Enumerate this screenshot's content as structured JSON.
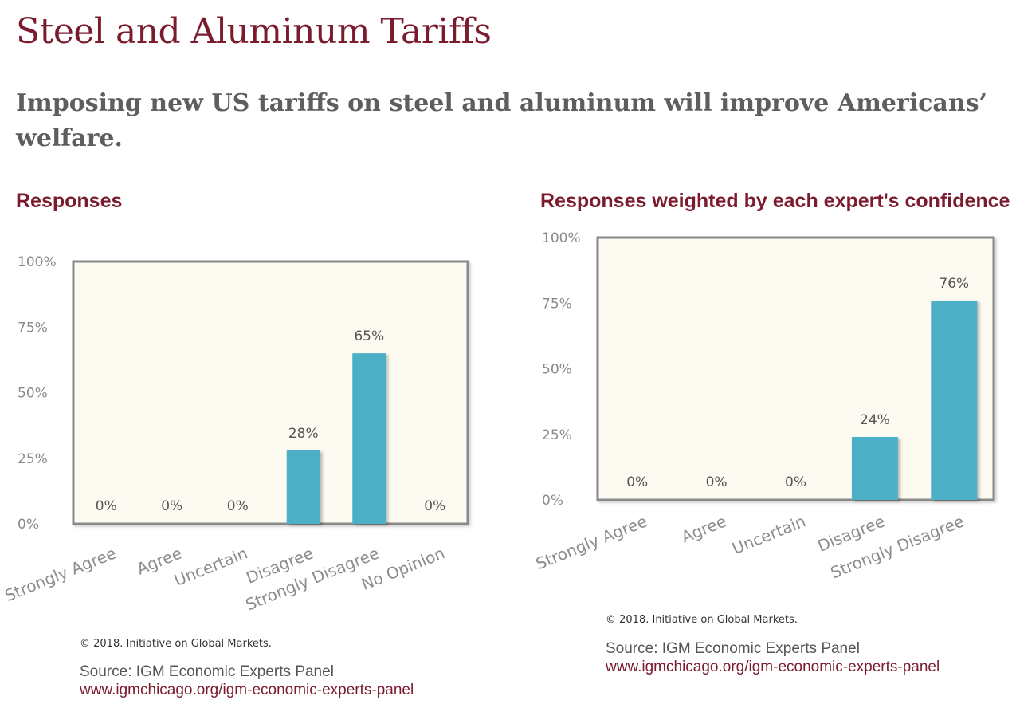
{
  "header": {
    "title": "Steel and Aluminum Tariffs",
    "subtitle": "Imposing new US tariffs on steel and aluminum will improve Americans’ welfare."
  },
  "colors": {
    "bar": "#4bb0c6",
    "plot_background": "#fdfbf1",
    "plot_border": "#8a8a8a",
    "accent": "#7a1b2e"
  },
  "chart_data": [
    {
      "type": "bar",
      "title": "Responses",
      "categories": [
        "Strongly Agree",
        "Agree",
        "Uncertain",
        "Disagree",
        "Strongly Disagree",
        "No Opinion"
      ],
      "values": [
        0,
        0,
        0,
        28,
        65,
        0
      ],
      "value_labels": [
        "0%",
        "0%",
        "0%",
        "28%",
        "65%",
        "0%"
      ],
      "yticks": [
        "0%",
        "25%",
        "50%",
        "75%",
        "100%"
      ],
      "ylim": [
        0,
        100
      ],
      "xlabel": "",
      "ylabel": "",
      "grid": false,
      "copyright": "© 2018. Initiative on Global Markets.",
      "source": "Source: IGM Economic Experts Panel",
      "link": "www.igmchicago.org/igm-economic-experts-panel"
    },
    {
      "type": "bar",
      "title": "Responses weighted by each expert's confidence",
      "categories": [
        "Strongly Agree",
        "Agree",
        "Uncertain",
        "Disagree",
        "Strongly Disagree"
      ],
      "values": [
        0,
        0,
        0,
        24,
        76
      ],
      "value_labels": [
        "0%",
        "0%",
        "0%",
        "24%",
        "76%"
      ],
      "yticks": [
        "0%",
        "25%",
        "50%",
        "75%",
        "100%"
      ],
      "ylim": [
        0,
        100
      ],
      "xlabel": "",
      "ylabel": "",
      "grid": false,
      "copyright": "© 2018. Initiative on Global Markets.",
      "source": "Source: IGM Economic Experts Panel",
      "link": "www.igmchicago.org/igm-economic-experts-panel"
    }
  ]
}
